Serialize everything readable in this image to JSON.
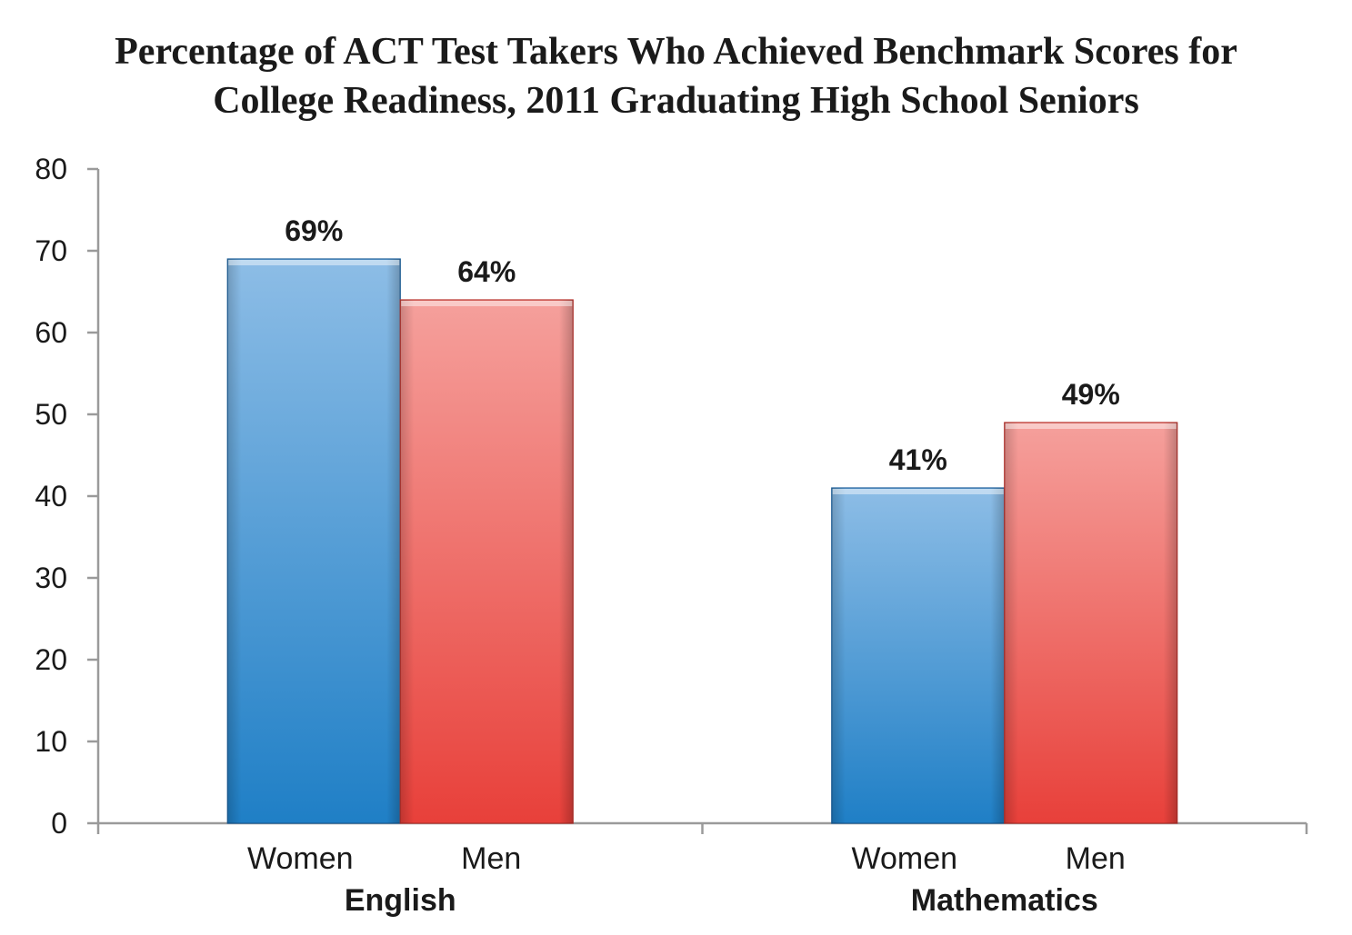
{
  "chart_data": {
    "type": "bar",
    "title_lines": [
      "Percentage of ACT Test Takers Who Achieved Benchmark Scores for",
      "College Readiness, 2011 Graduating High School Seniors"
    ],
    "ylim": [
      0,
      80
    ],
    "yticks": [
      "0",
      "10",
      "20",
      "30",
      "40",
      "50",
      "60",
      "70",
      "80"
    ],
    "grid": false,
    "legend": "none",
    "groups": [
      {
        "name": "English",
        "bars": [
          {
            "category": "Women",
            "value": 69,
            "label": "69%",
            "color": "blue"
          },
          {
            "category": "Men",
            "value": 64,
            "label": "64%",
            "color": "red"
          }
        ]
      },
      {
        "name": "Mathematics",
        "bars": [
          {
            "category": "Women",
            "value": 41,
            "label": "41%",
            "color": "blue"
          },
          {
            "category": "Men",
            "value": 49,
            "label": "49%",
            "color": "red"
          }
        ]
      }
    ],
    "colors": {
      "blue_top": "#8dbde6",
      "blue_bottom": "#1f7fc6",
      "red_top": "#f5a09c",
      "red_bottom": "#e8403a",
      "axis": "#9a9a9a"
    }
  }
}
